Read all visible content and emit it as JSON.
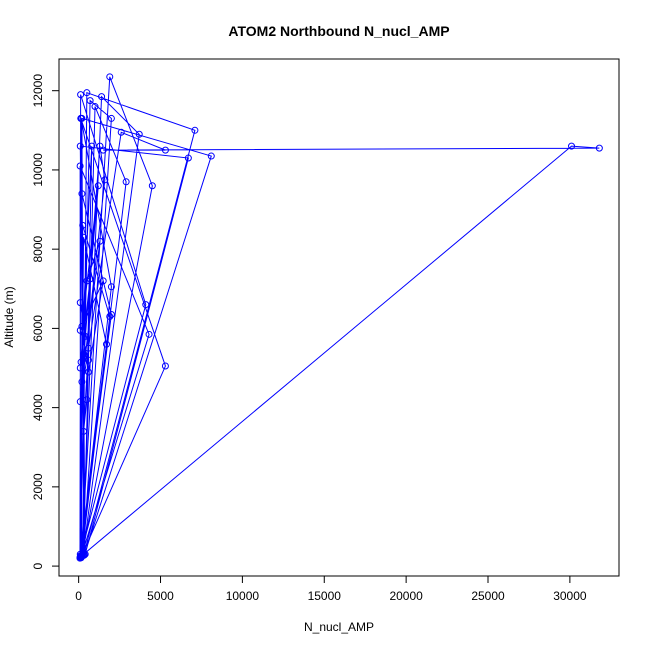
{
  "chart_data": {
    "type": "line",
    "title": "ATOM2 Northbound N_nucl_AMP",
    "xlabel": "N_nucl_AMP",
    "ylabel": "Altitude (m)",
    "xlim": [
      -1200,
      33000
    ],
    "ylim": [
      -250,
      12800
    ],
    "xticks": [
      0,
      5000,
      10000,
      15000,
      20000,
      25000,
      30000
    ],
    "yticks": [
      0,
      2000,
      4000,
      6000,
      8000,
      10000,
      12000
    ],
    "grid": false,
    "line_color": "#0000ff",
    "marker": "open-circle",
    "series": [
      {
        "points": [
          [
            80,
            200
          ],
          [
            130,
            11300
          ],
          [
            5300,
            5050
          ],
          [
            150,
            220
          ],
          [
            4300,
            5850
          ],
          [
            90,
            10100
          ],
          [
            110,
            260
          ],
          [
            4100,
            6600
          ],
          [
            120,
            11900
          ],
          [
            100,
            300
          ],
          [
            2000,
            6350
          ],
          [
            200,
            9400
          ],
          [
            180,
            240
          ],
          [
            1900,
            6300
          ],
          [
            250,
            8600
          ],
          [
            90,
            230
          ],
          [
            1700,
            5600
          ],
          [
            300,
            8300
          ],
          [
            120,
            250
          ],
          [
            2000,
            7050
          ],
          [
            150,
            11300
          ],
          [
            400,
            300
          ],
          [
            6700,
            10300
          ],
          [
            100,
            10600
          ],
          [
            350,
            280
          ],
          [
            8100,
            10350
          ],
          [
            200,
            11300
          ],
          [
            300,
            270
          ],
          [
            7100,
            11000
          ],
          [
            500,
            11950
          ],
          [
            250,
            260
          ],
          [
            3700,
            10900
          ],
          [
            1400,
            11850
          ],
          [
            200,
            250
          ],
          [
            4500,
            9600
          ],
          [
            1900,
            12350
          ],
          [
            150,
            210
          ],
          [
            2900,
            9700
          ],
          [
            1000,
            11600
          ],
          [
            300,
            350
          ],
          [
            2000,
            11300
          ],
          [
            700,
            11750
          ],
          [
            100,
            230
          ],
          [
            30100,
            10600
          ],
          [
            31800,
            10550
          ],
          [
            1500,
            10500
          ],
          [
            5300,
            10500
          ],
          [
            2600,
            10950
          ],
          [
            100,
            4150
          ],
          [
            1600,
            9750
          ],
          [
            1300,
            10600
          ],
          [
            200,
            4650
          ],
          [
            1300,
            8200
          ],
          [
            500,
            7200
          ],
          [
            100,
            5000
          ],
          [
            700,
            7250
          ],
          [
            600,
            5200
          ],
          [
            100,
            5950
          ],
          [
            1500,
            7200
          ],
          [
            600,
            4900
          ],
          [
            200,
            6050
          ],
          [
            1200,
            9600
          ],
          [
            400,
            5800
          ],
          [
            100,
            6650
          ],
          [
            600,
            5500
          ],
          [
            300,
            3400
          ],
          [
            500,
            4200
          ],
          [
            800,
            10600
          ],
          [
            150,
            5150
          ]
        ]
      }
    ]
  }
}
